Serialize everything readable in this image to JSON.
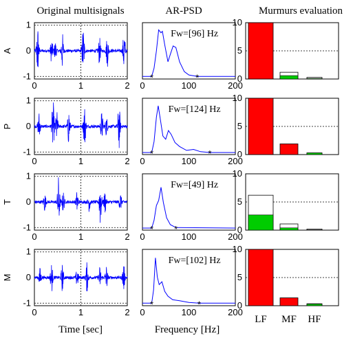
{
  "titles": {
    "col1": "Original multisignals",
    "col2": "AR-PSD",
    "col3": "Murmurs evaluation"
  },
  "xlabels": {
    "col1": "Time [sec]",
    "col2": "Frequency [Hz]"
  },
  "colors": {
    "signal": "#0000ff",
    "marker": "#ff0000",
    "bar_total": "#ff0000",
    "bar_inner": "#00cc00"
  },
  "chart_data": [
    {
      "type": "line",
      "panel": "time-signals",
      "title": "Original multisignals",
      "xlabel": "Time [sec]",
      "xlim": [
        0,
        2
      ],
      "ylim": [
        -1.1,
        1.1
      ],
      "xticks": [
        "0",
        "1",
        "2"
      ],
      "yticks": [
        "-1",
        "0",
        "1"
      ],
      "rows": [
        {
          "label": "A",
          "bursts": [
            [
              0.07,
              1.0
            ],
            [
              0.37,
              0.45
            ],
            [
              0.45,
              0.35
            ],
            [
              0.6,
              0.7
            ],
            [
              1.05,
              0.95
            ],
            [
              1.4,
              0.5
            ],
            [
              1.57,
              0.6
            ],
            [
              1.93,
              0.85
            ]
          ]
        },
        {
          "label": "P",
          "bursts": [
            [
              0.1,
              0.55
            ],
            [
              0.4,
              1.0
            ],
            [
              0.48,
              0.6
            ],
            [
              0.74,
              0.7
            ],
            [
              1.08,
              0.8
            ],
            [
              1.45,
              0.55
            ],
            [
              1.55,
              0.35
            ],
            [
              1.82,
              0.9
            ]
          ]
        },
        {
          "label": "T",
          "bursts": [
            [
              0.22,
              0.35
            ],
            [
              0.52,
              1.0
            ],
            [
              0.62,
              0.4
            ],
            [
              0.92,
              0.4
            ],
            [
              1.18,
              0.35
            ],
            [
              1.42,
              0.95
            ],
            [
              1.52,
              0.4
            ],
            [
              1.85,
              0.35
            ]
          ]
        },
        {
          "label": "M",
          "bursts": [
            [
              0.12,
              0.35
            ],
            [
              0.37,
              0.55
            ],
            [
              0.6,
              0.5
            ],
            [
              0.92,
              0.35
            ],
            [
              1.13,
              0.55
            ],
            [
              1.41,
              0.4
            ],
            [
              1.55,
              0.45
            ],
            [
              1.92,
              0.5
            ]
          ]
        }
      ]
    },
    {
      "type": "line",
      "panel": "ar-psd",
      "title": "AR-PSD",
      "xlabel": "Frequency [Hz]",
      "xlim": [
        0,
        200
      ],
      "ylim": [
        0,
        1.1
      ],
      "xticks": [
        "0",
        "100",
        "200"
      ],
      "rows": [
        {
          "label": "A",
          "fw": "Fw=[96] Hz",
          "markers": [
            [
              20,
              0.05
            ],
            [
              118,
              0.05
            ]
          ],
          "curve": [
            [
              0,
              0.05
            ],
            [
              20,
              0.05
            ],
            [
              25,
              0.2
            ],
            [
              30,
              0.55
            ],
            [
              35,
              0.95
            ],
            [
              40,
              0.9
            ],
            [
              43,
              0.95
            ],
            [
              48,
              0.65
            ],
            [
              55,
              0.35
            ],
            [
              60,
              0.5
            ],
            [
              66,
              0.65
            ],
            [
              72,
              0.62
            ],
            [
              80,
              0.35
            ],
            [
              90,
              0.15
            ],
            [
              100,
              0.08
            ],
            [
              118,
              0.05
            ],
            [
              200,
              0.05
            ]
          ]
        },
        {
          "label": "P",
          "fw": "Fw=[124] Hz",
          "markers": [
            [
              20,
              0.04
            ],
            [
              145,
              0.04
            ]
          ],
          "curve": [
            [
              0,
              0.04
            ],
            [
              20,
              0.04
            ],
            [
              25,
              0.25
            ],
            [
              30,
              0.75
            ],
            [
              34,
              0.95
            ],
            [
              38,
              0.7
            ],
            [
              44,
              0.35
            ],
            [
              50,
              0.3
            ],
            [
              56,
              0.48
            ],
            [
              62,
              0.4
            ],
            [
              70,
              0.22
            ],
            [
              80,
              0.15
            ],
            [
              95,
              0.08
            ],
            [
              110,
              0.1
            ],
            [
              125,
              0.06
            ],
            [
              145,
              0.04
            ],
            [
              200,
              0.04
            ]
          ]
        },
        {
          "label": "T",
          "fw": "Fw=[49] Hz",
          "markers": [
            [
              20,
              0.04
            ],
            [
              72,
              0.04
            ]
          ],
          "curve": [
            [
              0,
              0.04
            ],
            [
              20,
              0.04
            ],
            [
              25,
              0.2
            ],
            [
              30,
              0.5
            ],
            [
              35,
              0.6
            ],
            [
              40,
              0.85
            ],
            [
              45,
              0.55
            ],
            [
              52,
              0.25
            ],
            [
              60,
              0.1
            ],
            [
              72,
              0.05
            ],
            [
              200,
              0.04
            ]
          ]
        },
        {
          "label": "M",
          "fw": "Fw=[102] Hz",
          "markers": [
            [
              20,
              0.05
            ],
            [
              122,
              0.05
            ]
          ],
          "curve": [
            [
              0,
              0.05
            ],
            [
              20,
              0.05
            ],
            [
              24,
              0.3
            ],
            [
              28,
              0.95
            ],
            [
              32,
              0.55
            ],
            [
              36,
              0.4
            ],
            [
              42,
              0.45
            ],
            [
              48,
              0.3
            ],
            [
              55,
              0.2
            ],
            [
              65,
              0.12
            ],
            [
              80,
              0.09
            ],
            [
              100,
              0.06
            ],
            [
              122,
              0.05
            ],
            [
              200,
              0.05
            ]
          ]
        }
      ]
    },
    {
      "type": "bar",
      "panel": "murmurs-evaluation",
      "title": "Murmurs evaluation",
      "categories": [
        "LF",
        "MF",
        "HF"
      ],
      "ylim": [
        0,
        10
      ],
      "yticks": [
        "0",
        "5",
        "10"
      ],
      "rows": [
        {
          "label": "A",
          "total": [
            10,
            1.2,
            0.3
          ],
          "inner": [
            10,
            0.6,
            0.1
          ],
          "total_color": [
            "#ff0000",
            "#ffffff",
            "#ffffff"
          ]
        },
        {
          "label": "P",
          "total": [
            10,
            1.9,
            0.3
          ],
          "inner": [
            10,
            1.9,
            0.3
          ],
          "total_color": [
            "#ff0000",
            "#ff0000",
            "#00cc00"
          ]
        },
        {
          "label": "T",
          "total": [
            6.2,
            1.1,
            0.2
          ],
          "inner": [
            2.7,
            0.4,
            0.05
          ],
          "total_color": [
            "#ffffff",
            "#ffffff",
            "#ffffff"
          ]
        },
        {
          "label": "M",
          "total": [
            10,
            1.4,
            0.35
          ],
          "inner": [
            10,
            1.4,
            0.3
          ],
          "total_color": [
            "#ff0000",
            "#ff0000",
            "#00cc00"
          ]
        }
      ]
    }
  ]
}
